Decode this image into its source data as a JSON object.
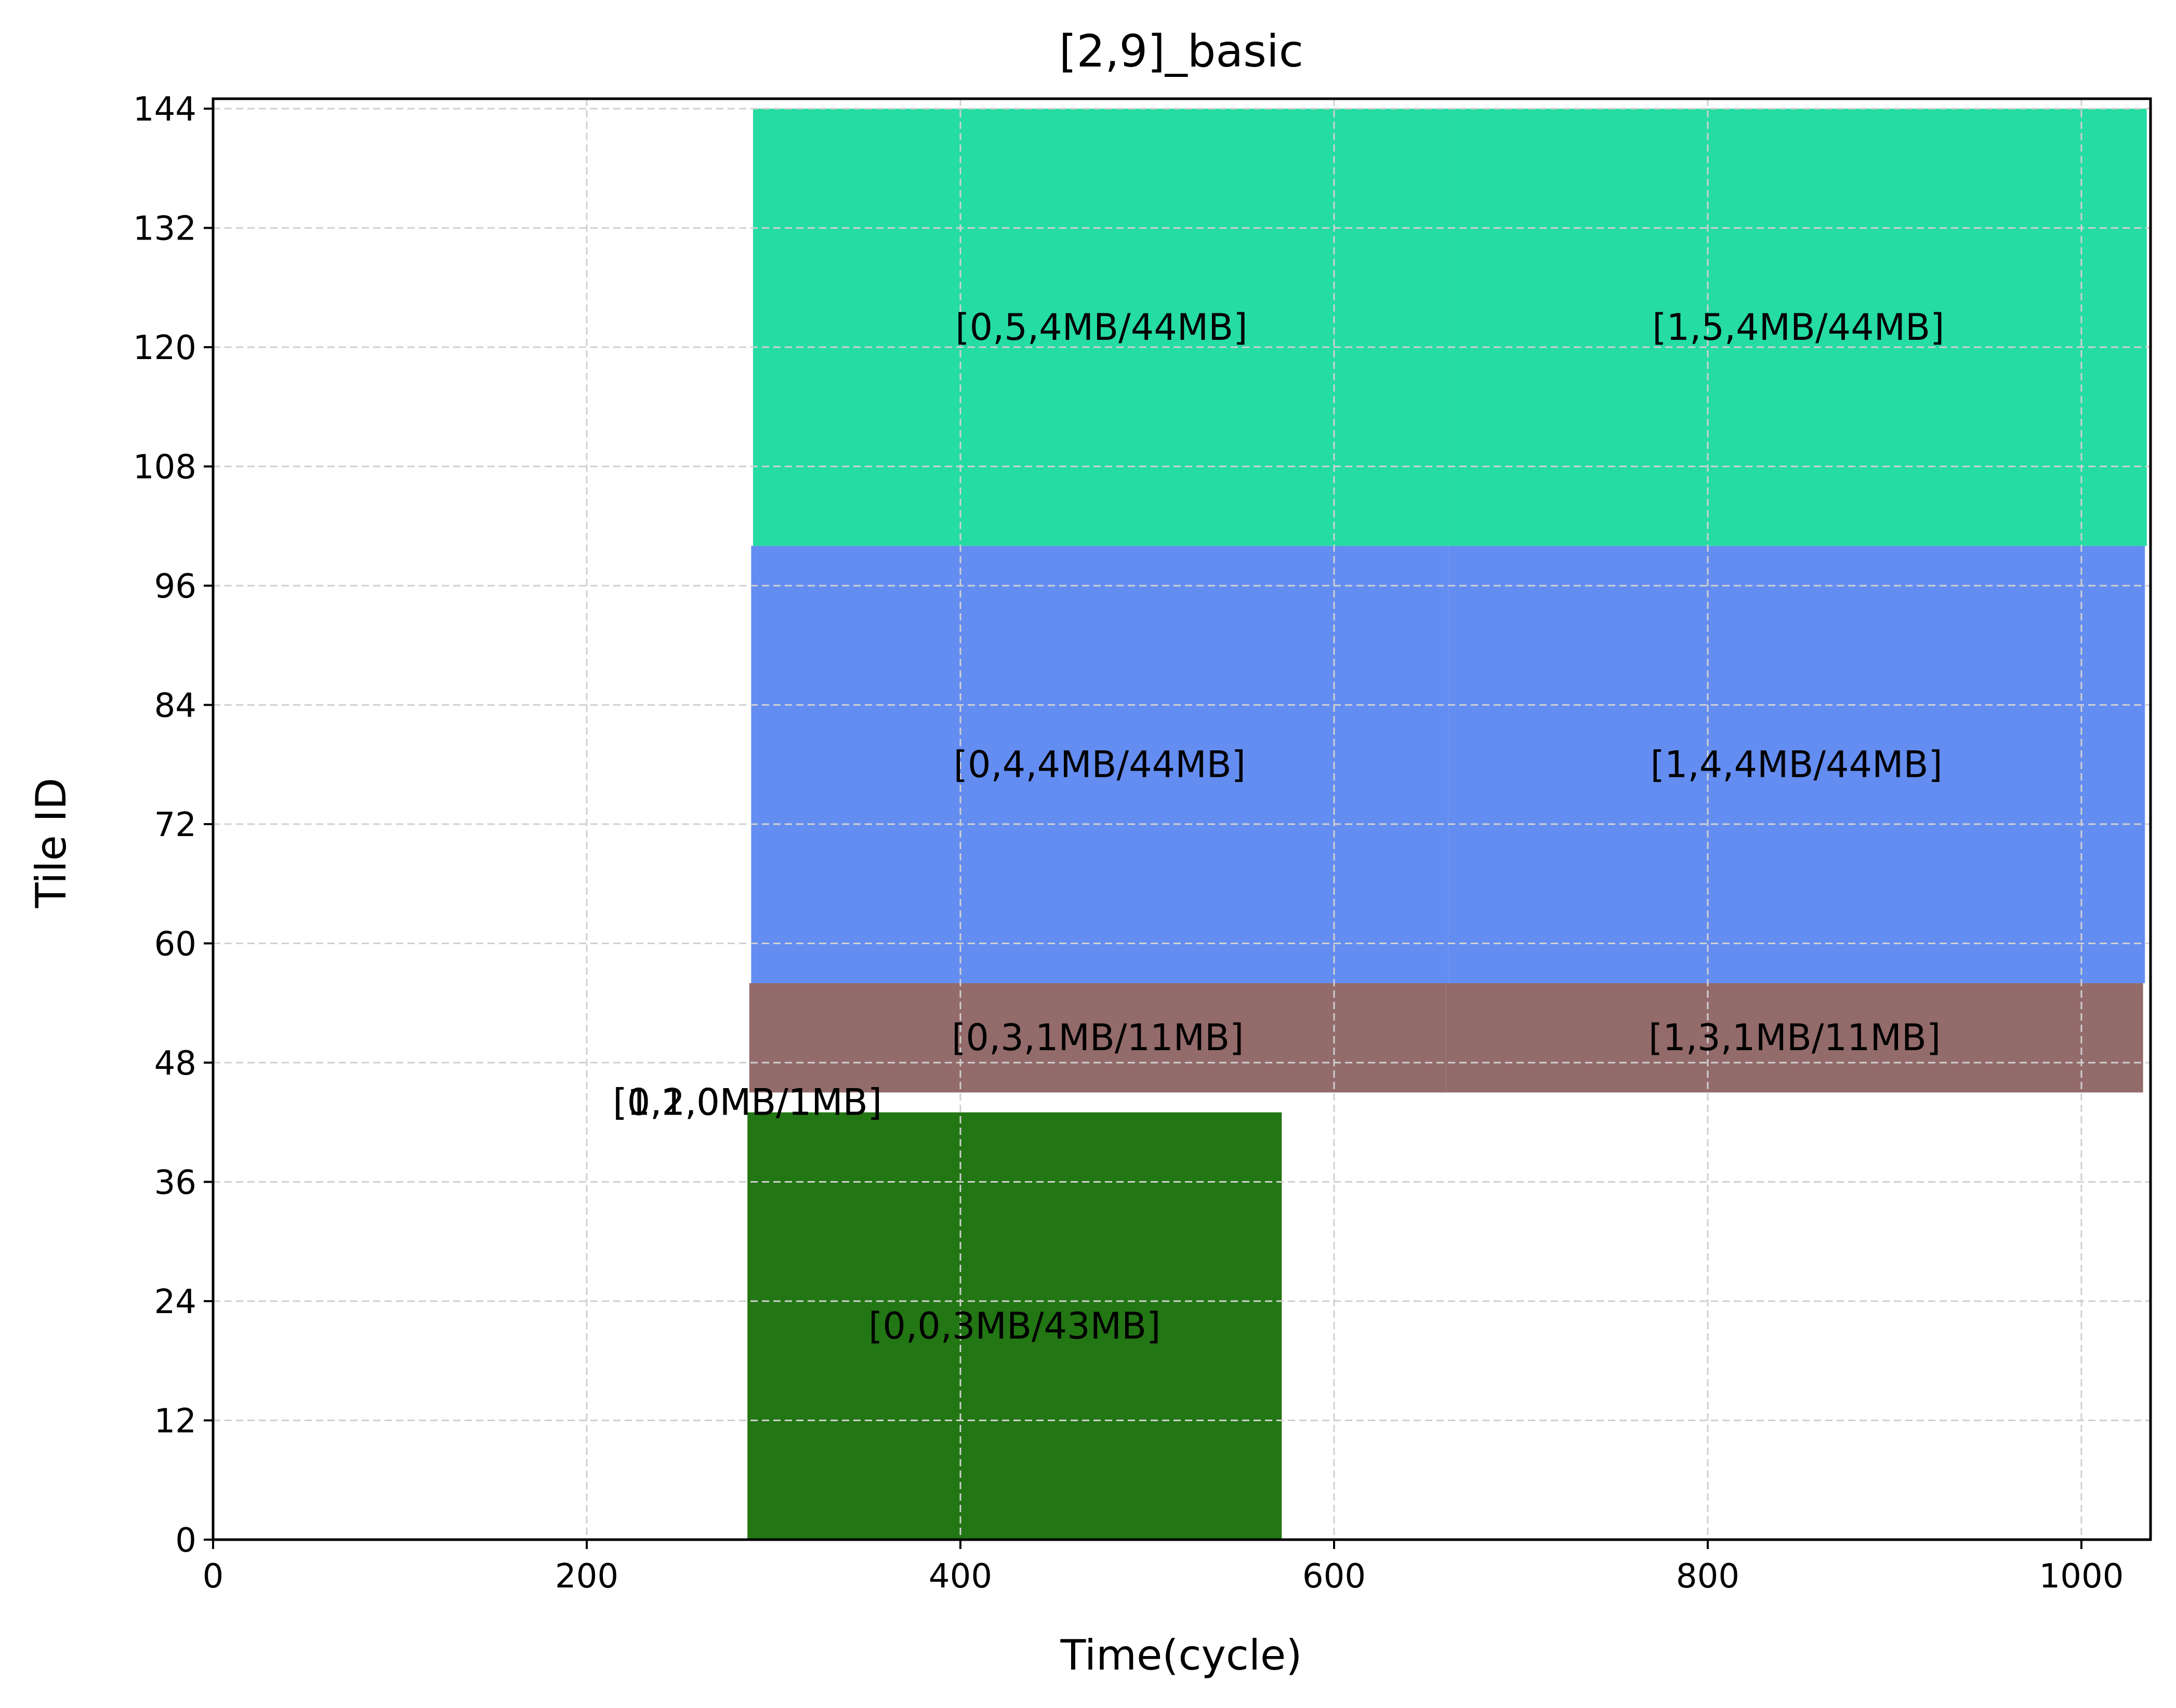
{
  "chart_data": {
    "type": "gantt",
    "title": "[2,9]_basic",
    "xlabel": "Time(cycle)",
    "ylabel": "Tile ID",
    "xlim": [
      0,
      1037
    ],
    "ylim": [
      0,
      145
    ],
    "xticks": [
      0,
      200,
      400,
      600,
      800,
      1000
    ],
    "yticks": [
      0,
      12,
      24,
      36,
      48,
      60,
      72,
      84,
      96,
      108,
      120,
      132,
      144
    ],
    "grid": true,
    "bars": [
      {
        "label": "[0,0,3MB/43MB]",
        "x_start": 286,
        "x_end": 572,
        "y_start": 0,
        "y_end": 43,
        "color": "#237614"
      },
      {
        "label": "[0,1,0MB/1MB]",
        "x_start": 286,
        "x_end": 286,
        "y_start": 43,
        "y_end": 45,
        "color": "#237614"
      },
      {
        "label": "[0,2,0MB/1MB]",
        "x_start": 286,
        "x_end": 286,
        "y_start": 43,
        "y_end": 45,
        "color": "#237614"
      },
      {
        "label": "[1,1,0MB/1MB]",
        "x_start": 286,
        "x_end": 286,
        "y_start": 43,
        "y_end": 45,
        "color": "#237614"
      },
      {
        "label": "[1,2,0MB/1MB]",
        "x_start": 286,
        "x_end": 286,
        "y_start": 43,
        "y_end": 45,
        "color": "#237614"
      },
      {
        "label": "[0,3,1MB/11MB]",
        "x_start": 287,
        "x_end": 660,
        "y_start": 45,
        "y_end": 56,
        "color": "#936b6a"
      },
      {
        "label": "[1,3,1MB/11MB]",
        "x_start": 660,
        "x_end": 1033,
        "y_start": 45,
        "y_end": 56,
        "color": "#936b6a"
      },
      {
        "label": "[0,4,4MB/44MB]",
        "x_start": 288,
        "x_end": 661,
        "y_start": 56,
        "y_end": 100,
        "color": "#648df1"
      },
      {
        "label": "[1,4,4MB/44MB]",
        "x_start": 661,
        "x_end": 1034,
        "y_start": 56,
        "y_end": 100,
        "color": "#648df1"
      },
      {
        "label": "[0,5,4MB/44MB]",
        "x_start": 289,
        "x_end": 662,
        "y_start": 100,
        "y_end": 144,
        "color": "#25dca3"
      },
      {
        "label": "[1,5,4MB/44MB]",
        "x_start": 662,
        "x_end": 1035,
        "y_start": 100,
        "y_end": 144,
        "color": "#25dca3"
      }
    ]
  }
}
